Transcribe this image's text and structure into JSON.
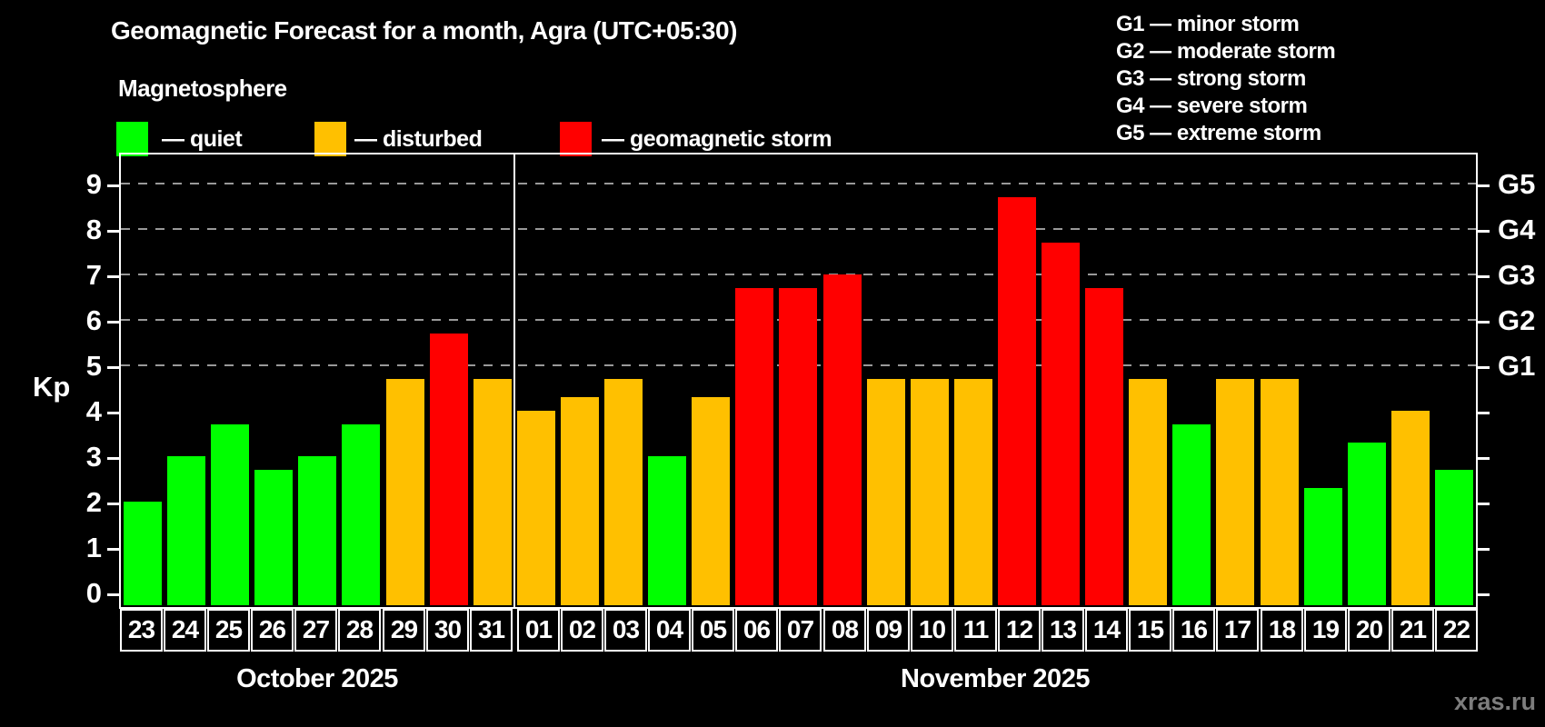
{
  "title": "Geomagnetic Forecast for a month, Agra (UTC+05:30)",
  "subtitle": "Magnetosphere",
  "legend": {
    "items": [
      {
        "label": "— quiet",
        "status": "quiet"
      },
      {
        "label": "— disturbed",
        "status": "disturbed"
      },
      {
        "label": "— geomagnetic storm",
        "status": "storm"
      }
    ]
  },
  "g_legend": {
    "lines": [
      "G1 — minor storm",
      "G2 — moderate storm",
      "G3 — strong storm",
      "G4 — severe storm",
      "G5 — extreme storm"
    ]
  },
  "axis": {
    "kp_label": "Kp",
    "left_ticks": [
      "0",
      "1",
      "2",
      "3",
      "4",
      "5",
      "6",
      "7",
      "8",
      "9"
    ],
    "right_labels": [
      "G1",
      "G2",
      "G3",
      "G4",
      "G5"
    ]
  },
  "colors": {
    "quiet": "#00ff00",
    "disturbed": "#ffc000",
    "storm": "#ff0000",
    "grid": "#999999",
    "frame": "#ffffff",
    "watermark": "#7d7d7d"
  },
  "watermark": "xras.ru",
  "chart_data": {
    "type": "bar",
    "title": "Geomagnetic Forecast for a month, Agra (UTC+05:30)",
    "ylabel": "Kp",
    "ylim": [
      0,
      9
    ],
    "grid_levels": [
      5,
      6,
      7,
      8,
      9
    ],
    "right_axis_labels": [
      "G1",
      "G2",
      "G3",
      "G4",
      "G5"
    ],
    "legend_position": "top-left",
    "series": [
      {
        "month": "October 2025",
        "days": [
          "23",
          "24",
          "25",
          "26",
          "27",
          "28",
          "29",
          "30",
          "31"
        ],
        "values": [
          2.0,
          3.0,
          3.7,
          2.7,
          3.0,
          3.7,
          4.7,
          5.7,
          4.7
        ],
        "status": [
          "quiet",
          "quiet",
          "quiet",
          "quiet",
          "quiet",
          "quiet",
          "disturbed",
          "storm",
          "disturbed"
        ]
      },
      {
        "month": "November 2025",
        "days": [
          "01",
          "02",
          "03",
          "04",
          "05",
          "06",
          "07",
          "08",
          "09",
          "10",
          "11",
          "12",
          "13",
          "14",
          "15",
          "16",
          "17",
          "18",
          "19",
          "20",
          "21",
          "22"
        ],
        "values": [
          4.0,
          4.3,
          4.7,
          3.0,
          4.3,
          6.7,
          6.7,
          7.0,
          4.7,
          4.7,
          4.7,
          8.7,
          7.7,
          6.7,
          4.7,
          3.7,
          4.7,
          4.7,
          2.3,
          3.3,
          4.0,
          2.7
        ],
        "status": [
          "disturbed",
          "disturbed",
          "disturbed",
          "quiet",
          "disturbed",
          "storm",
          "storm",
          "storm",
          "disturbed",
          "disturbed",
          "disturbed",
          "storm",
          "storm",
          "storm",
          "disturbed",
          "quiet",
          "disturbed",
          "disturbed",
          "quiet",
          "quiet",
          "disturbed",
          "quiet"
        ]
      }
    ]
  }
}
